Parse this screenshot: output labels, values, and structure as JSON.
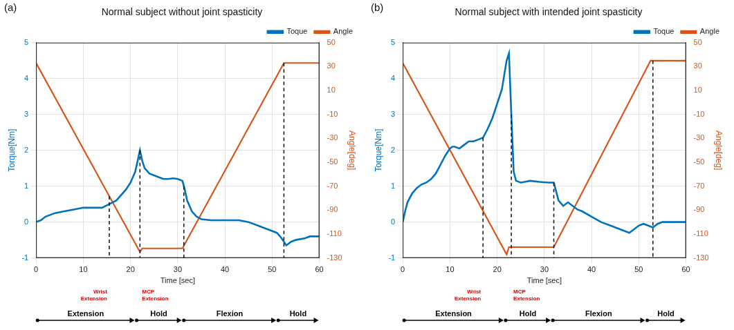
{
  "chart_data": [
    {
      "panel": "(a)",
      "type": "line",
      "title": "Normal subject without joint spasticity",
      "x_label": "Time [sec]",
      "y_label": "Torque[Nm]",
      "y2_label": "Angle[deg]",
      "xlim": [
        0,
        60
      ],
      "xticks": [
        0,
        10,
        20,
        30,
        40,
        50,
        60
      ],
      "ylim": [
        -1,
        5
      ],
      "yticks": [
        -1,
        0,
        1,
        2,
        3,
        4,
        5
      ],
      "y2lim": [
        -130,
        50
      ],
      "y2ticks": [
        -130,
        -110,
        -90,
        -70,
        -50,
        -30,
        -10,
        10,
        30,
        50
      ],
      "grid": true,
      "legend": "top right",
      "series": [
        {
          "name": "Toque",
          "color": "#0072bd",
          "marker": "none",
          "line_style": "solid",
          "x": [
            0,
            1,
            2,
            4,
            6,
            8,
            10,
            12,
            14,
            15.5,
            17,
            18,
            19,
            20,
            21,
            22,
            22.5,
            23,
            24,
            25,
            26,
            27,
            28,
            29,
            30,
            31,
            31.5,
            32,
            33,
            34,
            35,
            37,
            40,
            43,
            45,
            47,
            49,
            51,
            52,
            53,
            54,
            55,
            57,
            58,
            60
          ],
          "values": [
            0,
            0.05,
            0.15,
            0.25,
            0.3,
            0.35,
            0.4,
            0.4,
            0.4,
            0.5,
            0.6,
            0.75,
            0.9,
            1.1,
            1.4,
            2.0,
            1.7,
            1.5,
            1.35,
            1.3,
            1.25,
            1.2,
            1.2,
            1.22,
            1.2,
            1.15,
            0.9,
            0.6,
            0.3,
            0.15,
            0.08,
            0.05,
            0.05,
            0.05,
            0.0,
            -0.1,
            -0.2,
            -0.3,
            -0.45,
            -0.65,
            -0.55,
            -0.5,
            -0.45,
            -0.4,
            -0.4
          ]
        },
        {
          "name": "Angle",
          "color": "#d95319",
          "axis": "y2",
          "marker": "none",
          "line_style": "solid",
          "x": [
            0,
            22,
            22.5,
            31,
            52.5,
            60
          ],
          "values": [
            33,
            -125,
            -122,
            -122,
            33,
            33
          ]
        }
      ],
      "event_lines": [
        15.5,
        22,
        31.3,
        52.5
      ],
      "annotations": [
        {
          "x": 15.5,
          "text": "Wrist Extension"
        },
        {
          "x": 22,
          "text": "MCP Extension"
        }
      ],
      "phases": [
        {
          "label": "Extension",
          "start": 0,
          "end": 21
        },
        {
          "label": "Hold",
          "start": 21,
          "end": 31
        },
        {
          "label": "Flexion",
          "start": 31,
          "end": 51
        },
        {
          "label": "Hold",
          "start": 51,
          "end": 60
        }
      ]
    },
    {
      "panel": "(b)",
      "type": "line",
      "title": "Normal subject with intended joint spasticity",
      "x_label": "Time [sec]",
      "y_label": "Torque[Nm]",
      "y2_label": "Angle[deg]",
      "xlim": [
        0,
        60
      ],
      "xticks": [
        0,
        10,
        20,
        30,
        40,
        50,
        60
      ],
      "ylim": [
        -1,
        5
      ],
      "yticks": [
        -1,
        0,
        1,
        2,
        3,
        4,
        5
      ],
      "y2lim": [
        -130,
        50
      ],
      "y2ticks": [
        -130,
        -110,
        -90,
        -70,
        -50,
        -30,
        -10,
        10,
        30,
        50
      ],
      "grid": true,
      "legend": "top right",
      "series": [
        {
          "name": "Toque",
          "color": "#0072bd",
          "marker": "none",
          "line_style": "solid",
          "x": [
            0,
            0.5,
            1,
            2,
            3,
            4,
            5,
            6,
            7,
            8,
            9,
            10,
            10.5,
            11,
            12,
            13,
            14,
            15,
            16,
            17,
            18,
            19,
            20,
            21,
            22,
            22.5,
            23,
            23.5,
            24,
            25,
            27,
            29,
            31,
            32,
            33,
            34,
            35,
            36,
            37,
            38,
            40,
            42,
            44,
            46,
            48,
            50,
            51,
            52,
            53,
            54,
            55,
            56,
            58,
            60
          ],
          "values": [
            0,
            0.3,
            0.55,
            0.8,
            0.95,
            1.05,
            1.1,
            1.2,
            1.35,
            1.6,
            1.85,
            2.05,
            2.1,
            2.1,
            2.05,
            2.15,
            2.25,
            2.25,
            2.3,
            2.35,
            2.6,
            2.9,
            3.3,
            3.7,
            4.5,
            4.7,
            3.0,
            1.4,
            1.15,
            1.1,
            1.15,
            1.12,
            1.1,
            1.1,
            0.6,
            0.45,
            0.55,
            0.45,
            0.35,
            0.3,
            0.15,
            0.0,
            -0.1,
            -0.2,
            -0.3,
            -0.1,
            -0.05,
            -0.1,
            -0.15,
            -0.05,
            0.0,
            0.0,
            0.0,
            0.0
          ]
        },
        {
          "name": "Angle",
          "color": "#d95319",
          "axis": "y2",
          "marker": "none",
          "line_style": "solid",
          "x": [
            0,
            22,
            22.5,
            32,
            52.5,
            60
          ],
          "values": [
            33,
            -127,
            -121,
            -121,
            35,
            35
          ]
        }
      ],
      "event_lines": [
        17,
        23,
        32,
        53
      ],
      "annotations": [
        {
          "x": 17,
          "text": "Wrist Extension"
        },
        {
          "x": 23,
          "text": "MCP Extension"
        }
      ],
      "phases": [
        {
          "label": "Extension",
          "start": 0,
          "end": 21.5
        },
        {
          "label": "Hold",
          "start": 21.5,
          "end": 31.5
        },
        {
          "label": "Flexion",
          "start": 31.5,
          "end": 51.5
        },
        {
          "label": "Hold",
          "start": 51.5,
          "end": 60
        }
      ]
    }
  ]
}
